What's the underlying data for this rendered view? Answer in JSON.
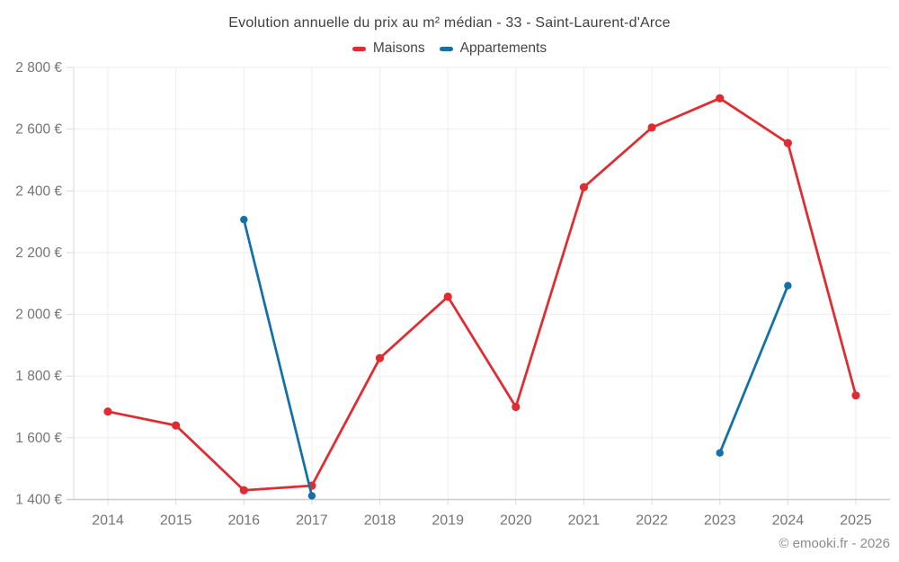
{
  "header": {
    "title": "Evolution annuelle du prix au m² médian - 33 - Saint-Laurent-d'Arce"
  },
  "legend": {
    "items": [
      {
        "label": "Maisons",
        "color": "#e02b31"
      },
      {
        "label": "Appartements",
        "color": "#1371a8"
      }
    ]
  },
  "footer": {
    "credit": "© emooki.fr - 2026"
  },
  "colors": {
    "maisons": "#e02b31",
    "appartements": "#1371a8",
    "gridline": "#ededed",
    "axis_border": "#d9d9d9",
    "bottom_border": "#cccccc",
    "tick_text": "#757575",
    "title_text": "#3f3f3f",
    "footer_text": "#8c8c8c"
  },
  "chart_data": {
    "type": "line",
    "title": "Evolution annuelle du prix au m² médian - 33 - Saint-Laurent-d'Arce",
    "categories": [
      "2014",
      "2015",
      "2016",
      "2017",
      "2018",
      "2019",
      "2020",
      "2021",
      "2022",
      "2023",
      "2024",
      "2025"
    ],
    "series": [
      {
        "name": "Maisons",
        "color": "#e02b31",
        "point_radius": 4.6,
        "values": [
          1685,
          1640,
          1430,
          1445,
          1858,
          2057,
          1700,
          2412,
          2605,
          2700,
          2555,
          1737
        ]
      },
      {
        "name": "Appartements",
        "color": "#1371a8",
        "point_radius": 4.2,
        "values": [
          null,
          null,
          2307,
          1412,
          null,
          null,
          null,
          null,
          null,
          1551,
          2093,
          null
        ]
      }
    ],
    "xlabel": "",
    "ylabel": "",
    "ylim": [
      1400,
      2800
    ],
    "ytick_step": 200,
    "y_tick_labels": [
      "2 800 €",
      "2 600 €",
      "2 400 €",
      "2 200 €",
      "2 000 €",
      "1 800 €",
      "1 600 €",
      "1 400 €"
    ],
    "grid": true,
    "legend_position": "top",
    "connect_gaps": false
  }
}
